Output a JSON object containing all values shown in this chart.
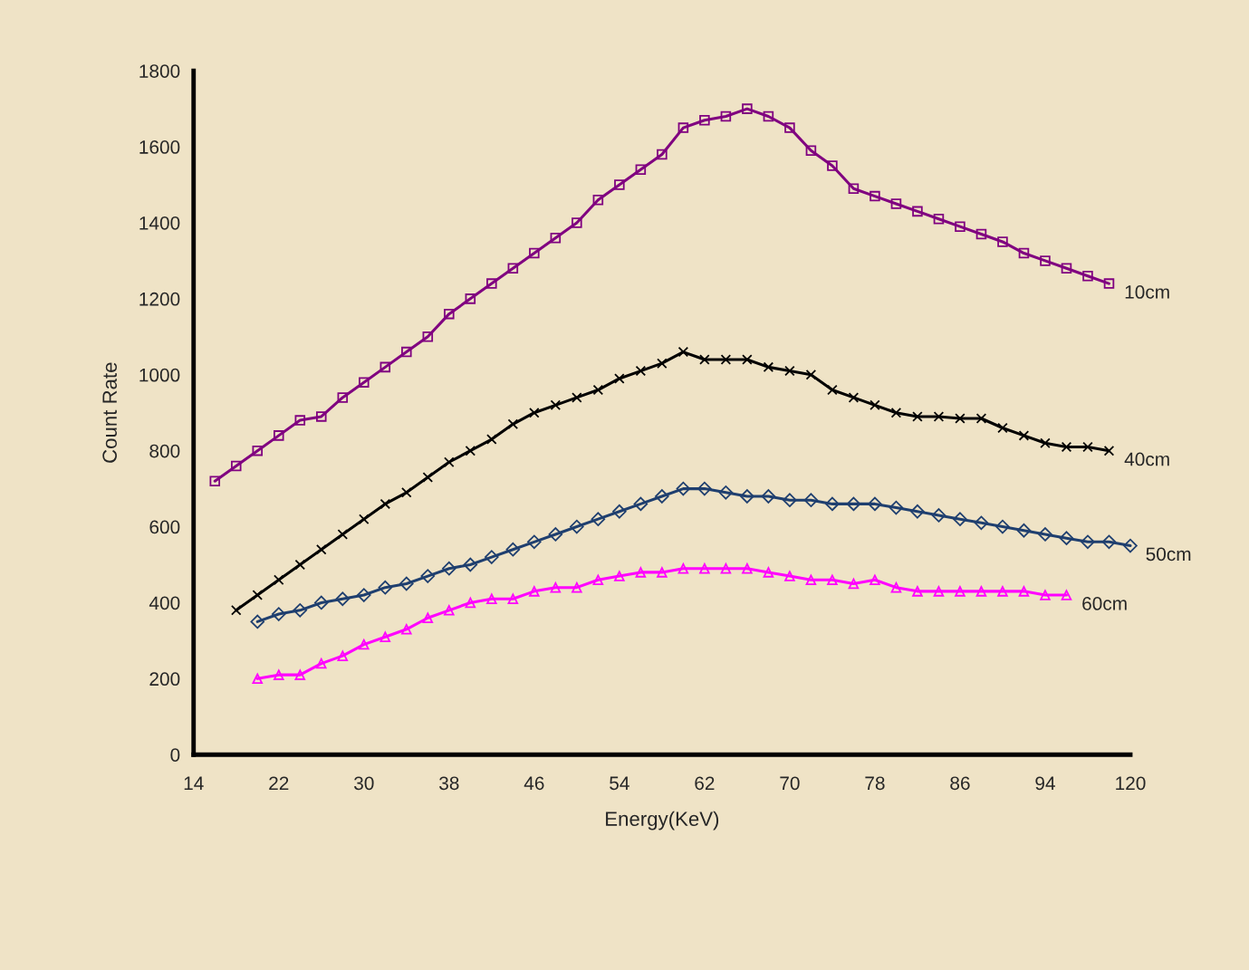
{
  "chart_data": {
    "type": "line",
    "xlabel": "Energy(KeV)",
    "ylabel": "Count Rate",
    "categories": [
      "14",
      null,
      null,
      null,
      "22",
      null,
      null,
      null,
      "30",
      null,
      null,
      null,
      "38",
      null,
      null,
      null,
      "46",
      null,
      null,
      null,
      "54",
      null,
      null,
      null,
      "62",
      null,
      null,
      null,
      "70",
      null,
      null,
      null,
      "78",
      null,
      null,
      null,
      "86",
      null,
      null,
      null,
      "94",
      null,
      null,
      null,
      "120"
    ],
    "ylim": [
      0,
      1800
    ],
    "yticks": [
      0,
      200,
      400,
      600,
      800,
      1000,
      1200,
      1400,
      1600,
      1800
    ],
    "grid": false,
    "legend": false,
    "line_style": "solid",
    "series": [
      {
        "name": "10cm",
        "color": "#800080",
        "marker": "square",
        "values": [
          null,
          720,
          760,
          800,
          840,
          880,
          890,
          940,
          980,
          1020,
          1060,
          1100,
          1160,
          1200,
          1240,
          1280,
          1320,
          1360,
          1400,
          1460,
          1500,
          1540,
          1580,
          1650,
          1670,
          1680,
          1700,
          1680,
          1650,
          1590,
          1550,
          1490,
          1470,
          1450,
          1430,
          1410,
          1390,
          1370,
          1350,
          1320,
          1300,
          1280,
          1260,
          1240,
          null
        ]
      },
      {
        "name": "40cm",
        "color": "#000000",
        "marker": "cross",
        "values": [
          null,
          null,
          380,
          420,
          460,
          500,
          540,
          580,
          620,
          660,
          690,
          730,
          770,
          800,
          830,
          870,
          900,
          920,
          940,
          960,
          990,
          1010,
          1030,
          1060,
          1040,
          1040,
          1040,
          1020,
          1010,
          1000,
          960,
          940,
          920,
          900,
          890,
          890,
          885,
          885,
          860,
          840,
          820,
          810,
          810,
          800,
          null
        ]
      },
      {
        "name": "50cm",
        "color": "#1f3f6f",
        "marker": "diamond",
        "values": [
          null,
          null,
          null,
          350,
          370,
          380,
          400,
          410,
          420,
          440,
          450,
          470,
          490,
          500,
          520,
          540,
          560,
          580,
          600,
          620,
          640,
          660,
          680,
          700,
          700,
          690,
          680,
          680,
          670,
          670,
          660,
          660,
          660,
          650,
          640,
          630,
          620,
          610,
          600,
          590,
          580,
          570,
          560,
          560,
          550
        ]
      },
      {
        "name": "60cm",
        "color": "#ff00ff",
        "marker": "triangle",
        "values": [
          null,
          null,
          null,
          200,
          210,
          210,
          240,
          260,
          290,
          310,
          330,
          360,
          380,
          400,
          410,
          410,
          430,
          440,
          440,
          460,
          470,
          480,
          480,
          490,
          490,
          490,
          490,
          480,
          470,
          460,
          460,
          450,
          460,
          440,
          430,
          430,
          430,
          430,
          430,
          430,
          420,
          420,
          null,
          null,
          null
        ]
      }
    ]
  }
}
